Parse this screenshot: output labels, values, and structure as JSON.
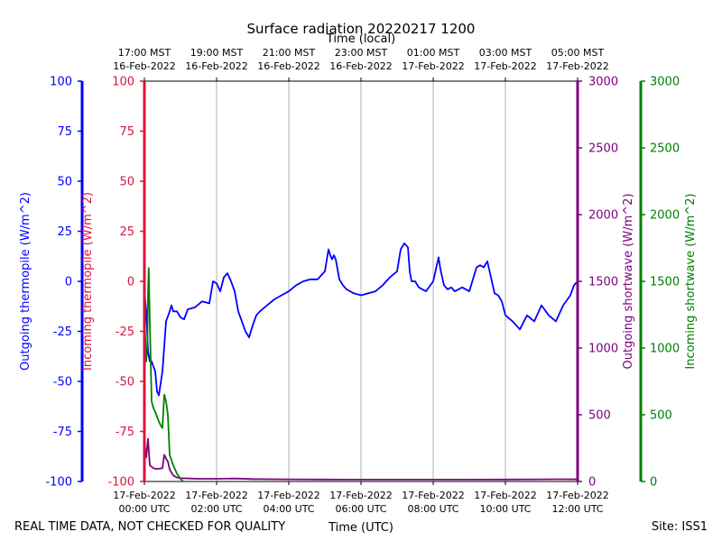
{
  "chart_data": {
    "type": "line",
    "title": "Surface radiation 20220217 1200",
    "top_xlabel": "Time (local)",
    "xlabel": "Time (UTC)",
    "footer_left": "REAL TIME DATA, NOT CHECKED FOR QUALITY",
    "footer_right": "Site: ISS1",
    "xlim_hours_utc": [
      0,
      12
    ],
    "grid": "vertical",
    "ticks_bottom": [
      {
        "line1": "17-Feb-2022",
        "line2": "00:00 UTC"
      },
      {
        "line1": "17-Feb-2022",
        "line2": "02:00 UTC"
      },
      {
        "line1": "17-Feb-2022",
        "line2": "04:00 UTC"
      },
      {
        "line1": "17-Feb-2022",
        "line2": "06:00 UTC"
      },
      {
        "line1": "17-Feb-2022",
        "line2": "08:00 UTC"
      },
      {
        "line1": "17-Feb-2022",
        "line2": "10:00 UTC"
      },
      {
        "line1": "17-Feb-2022",
        "line2": "12:00 UTC"
      }
    ],
    "ticks_top": [
      {
        "line1": "17:00 MST",
        "line2": "16-Feb-2022"
      },
      {
        "line1": "19:00 MST",
        "line2": "16-Feb-2022"
      },
      {
        "line1": "21:00 MST",
        "line2": "16-Feb-2022"
      },
      {
        "line1": "23:00 MST",
        "line2": "16-Feb-2022"
      },
      {
        "line1": "01:00 MST",
        "line2": "17-Feb-2022"
      },
      {
        "line1": "03:00 MST",
        "line2": "17-Feb-2022"
      },
      {
        "line1": "05:00 MST",
        "line2": "17-Feb-2022"
      }
    ],
    "axes": [
      {
        "key": "out_thermo",
        "label": "Outgoing thermopile (W/m^2)",
        "color": "#0000ff",
        "ylim": [
          -100,
          100
        ],
        "ticks": [
          -100,
          -75,
          -50,
          -25,
          0,
          25,
          50,
          75,
          100
        ]
      },
      {
        "key": "in_thermo",
        "label": "Incoming thermopile (W/m^2)",
        "color": "#dc143c",
        "ylim": [
          -100,
          100
        ],
        "ticks": [
          -100,
          -75,
          -50,
          -25,
          0,
          25,
          50,
          75,
          100
        ]
      },
      {
        "key": "out_sw",
        "label": "Outgoing shortwave (W/m^2)",
        "color": "#800080",
        "ylim": [
          0,
          3000
        ],
        "ticks": [
          0,
          500,
          1000,
          1500,
          2000,
          2500,
          3000
        ]
      },
      {
        "key": "in_sw",
        "label": "Incoming shortwave (W/m^2)",
        "color": "#008000",
        "ylim": [
          0,
          3000
        ],
        "ticks": [
          0,
          500,
          1000,
          1500,
          2000,
          2500,
          3000
        ]
      }
    ],
    "series": [
      {
        "axis": "out_thermo",
        "color": "#0000ff",
        "x": [
          0.0,
          0.05,
          0.1,
          0.15,
          0.2,
          0.3,
          0.35,
          0.4,
          0.5,
          0.6,
          0.7,
          0.75,
          0.8,
          0.9,
          1.0,
          1.1,
          1.2,
          1.4,
          1.6,
          1.8,
          1.9,
          2.0,
          2.1,
          2.2,
          2.3,
          2.4,
          2.5,
          2.6,
          2.7,
          2.8,
          2.9,
          3.0,
          3.1,
          3.2,
          3.4,
          3.6,
          3.8,
          4.0,
          4.2,
          4.4,
          4.6,
          4.8,
          5.0,
          5.1,
          5.15,
          5.2,
          5.25,
          5.3,
          5.4,
          5.5,
          5.6,
          5.8,
          6.0,
          6.2,
          6.4,
          6.6,
          6.8,
          7.0,
          7.1,
          7.2,
          7.3,
          7.35,
          7.4,
          7.5,
          7.6,
          7.8,
          8.0,
          8.1,
          8.15,
          8.2,
          8.3,
          8.4,
          8.5,
          8.6,
          8.8,
          9.0,
          9.2,
          9.3,
          9.4,
          9.5,
          9.6,
          9.7,
          9.8,
          9.9,
          10.0,
          10.2,
          10.4,
          10.6,
          10.8,
          11.0,
          11.2,
          11.4,
          11.6,
          11.8,
          11.9,
          12.0
        ],
        "y": [
          -5,
          -15,
          -35,
          -40,
          -40,
          -45,
          -55,
          -57,
          -45,
          -20,
          -15,
          -12,
          -15,
          -15,
          -18,
          -19,
          -14,
          -13,
          -10,
          -11,
          0,
          -1,
          -5,
          2,
          4,
          0,
          -5,
          -15,
          -20,
          -25,
          -28,
          -22,
          -17,
          -15,
          -12,
          -9,
          -7,
          -5,
          -2,
          0,
          1,
          1,
          5,
          16,
          13,
          11,
          13,
          11,
          1,
          -2,
          -4,
          -6,
          -7,
          -6,
          -5,
          -2,
          2,
          5,
          16,
          19,
          17,
          5,
          0,
          0,
          -3,
          -5,
          0,
          8,
          12,
          6,
          -2,
          -4,
          -3,
          -5,
          -3,
          -5,
          7,
          8,
          7,
          10,
          2,
          -6,
          -7,
          -10,
          -17,
          -20,
          -24,
          -17,
          -20,
          -12,
          -17,
          -20,
          -12,
          -7,
          -2,
          0
        ]
      },
      {
        "axis": "out_sw",
        "color": "#800080",
        "x": [
          0.0,
          0.05,
          0.1,
          0.15,
          0.2,
          0.25,
          0.3,
          0.4,
          0.5,
          0.55,
          0.6,
          0.65,
          0.7,
          0.8,
          0.9,
          1.0,
          1.5,
          2.0,
          2.5,
          3.0,
          4.0,
          5.0,
          6.0,
          7.0,
          8.0,
          9.0,
          10.0,
          11.0,
          11.5,
          12.0
        ],
        "y": [
          300,
          180,
          320,
          120,
          110,
          100,
          95,
          95,
          100,
          200,
          170,
          150,
          90,
          45,
          30,
          25,
          20,
          20,
          22,
          18,
          16,
          15,
          14,
          14,
          14,
          14,
          15,
          16,
          17,
          16
        ]
      },
      {
        "axis": "in_sw",
        "color": "#008000",
        "x": [
          0.0,
          0.05,
          0.08,
          0.1,
          0.12,
          0.15,
          0.2,
          0.25,
          0.3,
          0.4,
          0.45,
          0.5,
          0.55,
          0.6,
          0.65,
          0.7,
          0.8,
          0.9,
          1.0,
          1.05,
          1.1
        ],
        "y": [
          1250,
          900,
          1000,
          1400,
          1600,
          1200,
          600,
          550,
          520,
          450,
          420,
          400,
          650,
          600,
          500,
          200,
          120,
          60,
          20,
          5,
          0
        ]
      }
    ]
  }
}
